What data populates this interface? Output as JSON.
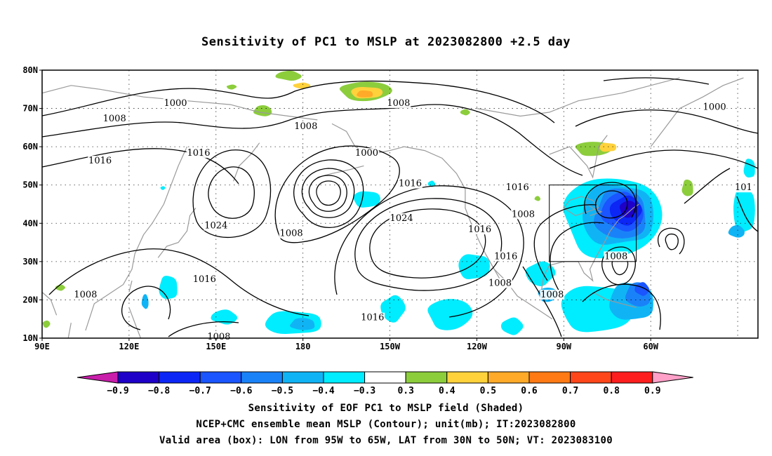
{
  "title": "Sensitivity of PC1 to MSLP at 2023082800 +2.5 day",
  "axes": {
    "lat_labels": [
      "80N",
      "70N",
      "60N",
      "50N",
      "40N",
      "30N",
      "20N",
      "10N"
    ],
    "lon_labels": [
      "90E",
      "120E",
      "150E",
      "180",
      "150W",
      "120W",
      "90W",
      "60W"
    ]
  },
  "contour_labels": [
    {
      "text": "1000",
      "lon": 136,
      "lat": 71
    },
    {
      "text": "1008",
      "lon": 115,
      "lat": 67
    },
    {
      "text": "1008",
      "lon": 213,
      "lat": 71
    },
    {
      "text": "1000",
      "lon": 202,
      "lat": 58
    },
    {
      "text": "1008",
      "lon": 181,
      "lat": 65
    },
    {
      "text": "1016",
      "lon": 144,
      "lat": 58
    },
    {
      "text": "1016",
      "lon": 110,
      "lat": 56
    },
    {
      "text": "1024",
      "lon": 150,
      "lat": 39
    },
    {
      "text": "1008",
      "lon": 176,
      "lat": 37
    },
    {
      "text": "1016",
      "lon": 146,
      "lat": 25
    },
    {
      "text": "1008",
      "lon": 105,
      "lat": 21
    },
    {
      "text": "1008",
      "lon": 151,
      "lat": 10
    },
    {
      "text": "1016",
      "lon": 217,
      "lat": 50
    },
    {
      "text": "1024",
      "lon": 214,
      "lat": 41
    },
    {
      "text": "1016",
      "lon": 241,
      "lat": 38
    },
    {
      "text": "1016",
      "lon": 254,
      "lat": 49
    },
    {
      "text": "1008",
      "lon": 256,
      "lat": 42
    },
    {
      "text": "1016",
      "lon": 250,
      "lat": 31
    },
    {
      "text": "1008",
      "lon": 248,
      "lat": 24
    },
    {
      "text": "1008",
      "lon": 266,
      "lat": 21
    },
    {
      "text": "1008",
      "lon": 288,
      "lat": 31
    },
    {
      "text": "1016",
      "lon": 204,
      "lat": 15
    },
    {
      "text": "1000",
      "lon": 322,
      "lat": 70
    },
    {
      "text": "101",
      "lon": 332,
      "lat": 49
    }
  ],
  "colorbar": {
    "labels": [
      "−0.9",
      "−0.8",
      "−0.7",
      "−0.6",
      "−0.5",
      "−0.4",
      "−0.3",
      "0.3",
      "0.4",
      "0.5",
      "0.6",
      "0.7",
      "0.8",
      "0.9"
    ],
    "colors": [
      "#1e00c8",
      "#0c26f5",
      "#1a55ff",
      "#1a82f8",
      "#10b4f5",
      "#00ecff",
      "#ffffff",
      "#8ccd3c",
      "#ffd23c",
      "#ffaa28",
      "#ff7a14",
      "#ff461a",
      "#ff1e1e"
    ],
    "left_end_color": "#c81eaa",
    "right_end_color": "#ffa0c8"
  },
  "valid_box": {
    "lon_min": 265,
    "lon_max": 295,
    "lat_min": 30,
    "lat_max": 50
  },
  "captions": [
    "Sensitivity of EOF PC1 to MSLP field (Shaded)",
    "NCEP+CMC ensemble mean MSLP (Contour); unit(mb); IT:2023082800",
    "Valid area (box): LON from 95W to 65W, LAT from 30N to 50N; VT: 2023083100"
  ]
}
